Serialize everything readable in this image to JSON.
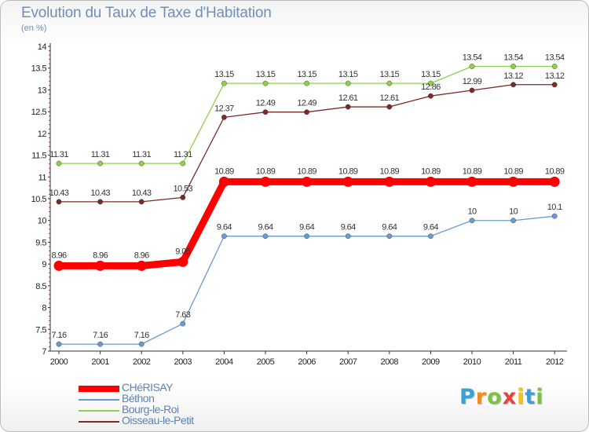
{
  "chart_data": {
    "type": "line",
    "title": "Evolution du Taux de Taxe d'Habitation",
    "subtitle": "(en %)",
    "x": [
      "2000",
      "2001",
      "2002",
      "2003",
      "2004",
      "2005",
      "2006",
      "2007",
      "2008",
      "2009",
      "2010",
      "2011",
      "2012"
    ],
    "ylim": [
      7,
      14
    ],
    "yticks": [
      "7",
      "7.5",
      "8",
      "8.5",
      "9",
      "9.5",
      "10",
      "10.5",
      "11",
      "11.5",
      "12",
      "12.5",
      "13",
      "13.5",
      "14"
    ],
    "grid": false,
    "legend_position": "bottom-left",
    "series": [
      {
        "name": "Bourg-le-Roi",
        "color": "#8ed04a",
        "values": [
          11.31,
          11.31,
          11.31,
          11.31,
          13.15,
          13.15,
          13.15,
          13.15,
          13.15,
          13.15,
          13.54,
          13.54,
          13.54
        ],
        "labels": [
          "11.31",
          "11.31",
          "11.31",
          "11.31",
          "13.15",
          "13.15",
          "13.15",
          "13.15",
          "13.15",
          "13.15",
          "13.54",
          "13.54",
          "13.54"
        ]
      },
      {
        "name": "Oisseau-le-Petit",
        "color": "#7a2b2b",
        "values": [
          10.43,
          10.43,
          10.43,
          10.53,
          12.37,
          12.49,
          12.49,
          12.61,
          12.61,
          12.86,
          12.99,
          13.12,
          13.12
        ],
        "labels": [
          "10.43",
          "10.43",
          "10.43",
          "10.53",
          "12.37",
          "12.49",
          "12.49",
          "12.61",
          "12.61",
          "12.86",
          "12.99",
          "13.12",
          "13.12"
        ]
      },
      {
        "name": "Béthon",
        "color": "#6a9bd0",
        "values": [
          7.16,
          7.16,
          7.16,
          7.63,
          9.64,
          9.64,
          9.64,
          9.64,
          9.64,
          9.64,
          10,
          10,
          10.1
        ],
        "labels": [
          "7.16",
          "7.16",
          "7.16",
          "7.63",
          "9.64",
          "9.64",
          "9.64",
          "9.64",
          "9.64",
          "9.64",
          "10",
          "10",
          "10.1"
        ]
      },
      {
        "name": "CHéRISAY",
        "color": "#ff0000",
        "values": [
          8.96,
          8.96,
          8.96,
          9.05,
          10.89,
          10.89,
          10.89,
          10.89,
          10.89,
          10.89,
          10.89,
          10.89,
          10.89
        ],
        "labels": [
          "8.96",
          "8.96",
          "8.96",
          "9.05",
          "10.89",
          "10.89",
          "10.89",
          "10.89",
          "10.89",
          "10.89",
          "10.89",
          "10.89",
          "10.89"
        ]
      }
    ],
    "legend": [
      {
        "name": "CHéRISAY",
        "color": "#ff0000"
      },
      {
        "name": "Béthon",
        "color": "#6a9bd0"
      },
      {
        "name": "Bourg-le-Roi",
        "color": "#8ed04a"
      },
      {
        "name": "Oisseau-le-Petit",
        "color": "#7a2b2b"
      }
    ]
  },
  "logo": {
    "letters": [
      "P",
      "r",
      "o",
      "x",
      "i",
      "t",
      "i"
    ],
    "colors": [
      "#3aa0d8",
      "#f28c1e",
      "#7cc242",
      "#e8423c",
      "#f2c01e",
      "#3aa0d8",
      "#7cc242"
    ]
  }
}
